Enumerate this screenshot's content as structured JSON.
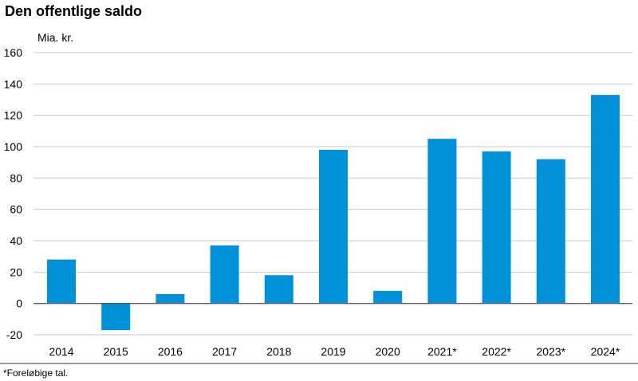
{
  "title": "Den offentlige saldo",
  "footnote": "*Foreløbige tal.",
  "colors": {
    "bar": "#0091d8",
    "grid": "#c8c8c8",
    "zero_line": "#5a5a5a",
    "bottom_rule": "#1f3a5a"
  },
  "chart_data": {
    "type": "bar",
    "title": "Den offentlige saldo",
    "ylabel": "Mia. kr.",
    "xlabel": "",
    "categories": [
      "2014",
      "2015",
      "2016",
      "2017",
      "2018",
      "2019",
      "2020",
      "2021*",
      "2022*",
      "2023*",
      "2024*"
    ],
    "values": [
      28,
      -17,
      6,
      37,
      18,
      98,
      8,
      105,
      97,
      92,
      133
    ],
    "ylim": [
      -20,
      160
    ],
    "yticks": [
      -20,
      0,
      20,
      40,
      60,
      80,
      100,
      120,
      140,
      160
    ],
    "grid": true
  }
}
